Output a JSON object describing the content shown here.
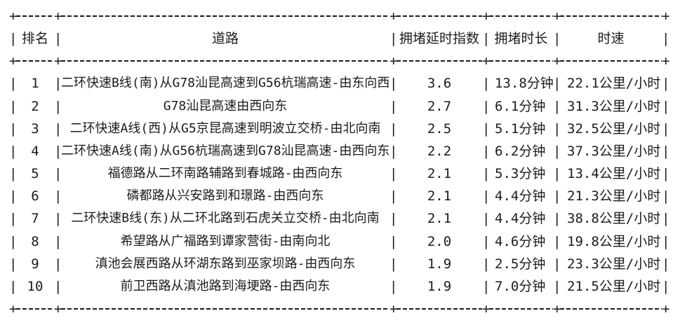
{
  "table": {
    "columns": [
      {
        "key": "rank",
        "label": "排名"
      },
      {
        "key": "road",
        "label": "道路"
      },
      {
        "key": "delay-index",
        "label": "拥堵延时指数"
      },
      {
        "key": "duration",
        "label": "拥堵时长"
      },
      {
        "key": "speed",
        "label": "时速"
      }
    ],
    "rows": [
      [
        "1",
        "二环快速B线(南)从G78汕昆高速到G56杭瑞高速-由东向西",
        "3.6",
        "13.8分钟",
        "22.1公里/小时"
      ],
      [
        "2",
        "G78汕昆高速由西向东",
        "2.7",
        "6.1分钟",
        "31.3公里/小时"
      ],
      [
        "3",
        "二环快速A线(西)从G5京昆高速到明波立交桥-由北向南",
        "2.5",
        "5.1分钟",
        "32.5公里/小时"
      ],
      [
        "4",
        "二环快速A线(南)从G56杭瑞高速到G78汕昆高速-由西向东",
        "2.2",
        "6.2分钟",
        "37.3公里/小时"
      ],
      [
        "5",
        "福德路从二环南路辅路到春城路-由西向东",
        "2.1",
        "5.3分钟",
        "13.4公里/小时"
      ],
      [
        "6",
        "磷都路从兴安路到和璟路-由西向东",
        "2.1",
        "4.4分钟",
        "21.3公里/小时"
      ],
      [
        "7",
        "二环快速B线(东)从二环北路到石虎关立交桥-由北向南",
        "2.1",
        "4.4分钟",
        "38.8公里/小时"
      ],
      [
        "8",
        "希望路从广福路到谭家营街-由南向北",
        "2.0",
        "4.6分钟",
        "19.8公里/小时"
      ],
      [
        "9",
        "滇池会展西路从环湖东路到巫家坝路-由西向东",
        "1.9",
        "2.5分钟",
        "23.3公里/小时"
      ],
      [
        "10",
        "前卫西路从滇池路到海埂路-由西向东",
        "1.9",
        "7.0分钟",
        "21.5公里/小时"
      ]
    ],
    "border_glyphs": {
      "junction": "+",
      "vertical": "|"
    },
    "colors": {
      "text": "#1c1c1c",
      "background": "#ffffff"
    }
  }
}
